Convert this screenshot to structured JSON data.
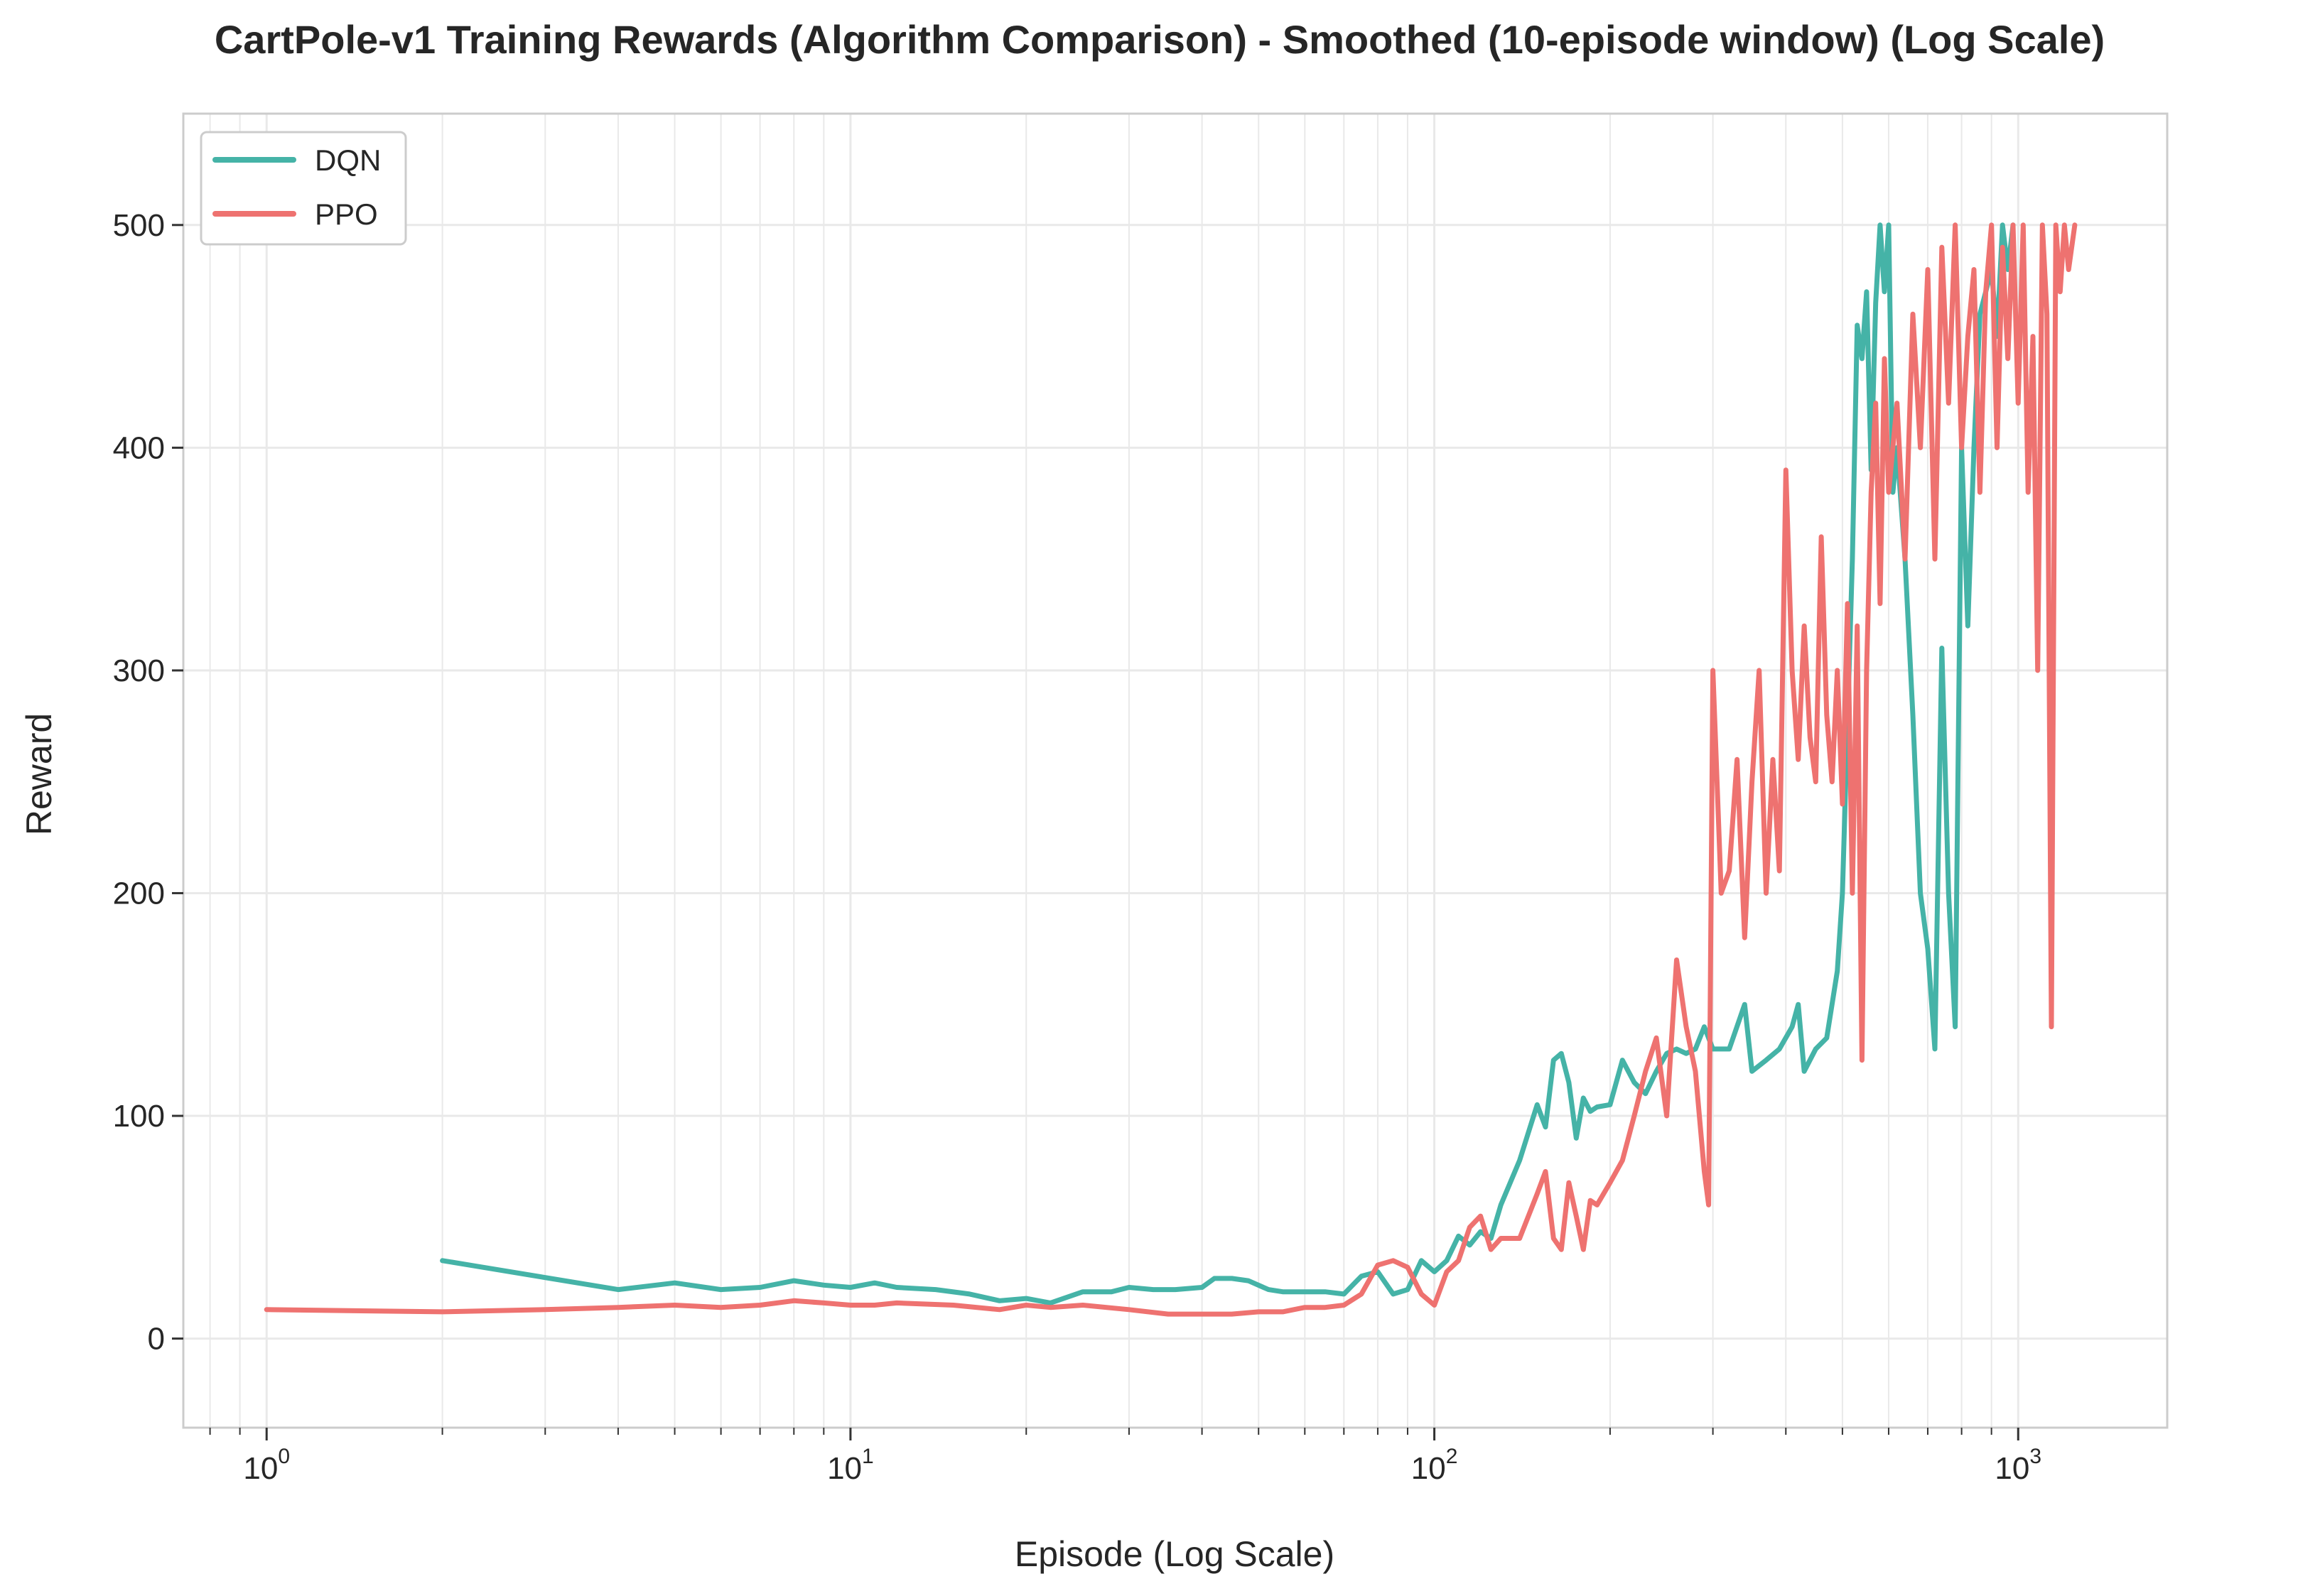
{
  "chart_data": {
    "type": "line",
    "title": "CartPole-v1 Training Rewards (Algorithm Comparison) - Smoothed (10-episode window) (Log Scale)",
    "xlabel": "Episode (Log Scale)",
    "ylabel": "Reward",
    "x_scale": "log",
    "xlim": [
      0.72,
      1800
    ],
    "ylim": [
      -40,
      550
    ],
    "x_ticks": [
      {
        "base": "10",
        "exp": "0",
        "value": 1
      },
      {
        "base": "10",
        "exp": "1",
        "value": 10
      },
      {
        "base": "10",
        "exp": "2",
        "value": 100
      },
      {
        "base": "10",
        "exp": "3",
        "value": 1000
      }
    ],
    "y_ticks": [
      0,
      100,
      200,
      300,
      400,
      500
    ],
    "grid": true,
    "legend_position": "top-left",
    "series": [
      {
        "name": "DQN",
        "color": "#45B3A7",
        "points": [
          [
            2,
            35
          ],
          [
            4,
            22
          ],
          [
            5,
            25
          ],
          [
            6,
            22
          ],
          [
            7,
            23
          ],
          [
            8,
            26
          ],
          [
            9,
            24
          ],
          [
            10,
            23
          ],
          [
            11,
            25
          ],
          [
            12,
            23
          ],
          [
            14,
            22
          ],
          [
            16,
            20
          ],
          [
            18,
            17
          ],
          [
            20,
            18
          ],
          [
            22,
            16
          ],
          [
            25,
            21
          ],
          [
            28,
            21
          ],
          [
            30,
            23
          ],
          [
            33,
            22
          ],
          [
            36,
            22
          ],
          [
            40,
            23
          ],
          [
            42,
            27
          ],
          [
            45,
            27
          ],
          [
            48,
            26
          ],
          [
            52,
            22
          ],
          [
            55,
            21
          ],
          [
            60,
            21
          ],
          [
            65,
            21
          ],
          [
            70,
            20
          ],
          [
            75,
            28
          ],
          [
            80,
            30
          ],
          [
            85,
            20
          ],
          [
            90,
            22
          ],
          [
            95,
            35
          ],
          [
            100,
            30
          ],
          [
            105,
            35
          ],
          [
            110,
            46
          ],
          [
            115,
            42
          ],
          [
            120,
            48
          ],
          [
            125,
            45
          ],
          [
            130,
            60
          ],
          [
            140,
            80
          ],
          [
            150,
            105
          ],
          [
            155,
            95
          ],
          [
            160,
            125
          ],
          [
            165,
            128
          ],
          [
            170,
            115
          ],
          [
            175,
            90
          ],
          [
            180,
            108
          ],
          [
            185,
            102
          ],
          [
            190,
            104
          ],
          [
            200,
            105
          ],
          [
            210,
            125
          ],
          [
            220,
            115
          ],
          [
            230,
            110
          ],
          [
            240,
            120
          ],
          [
            250,
            128
          ],
          [
            260,
            130
          ],
          [
            270,
            128
          ],
          [
            280,
            130
          ],
          [
            290,
            140
          ],
          [
            300,
            130
          ],
          [
            320,
            130
          ],
          [
            340,
            150
          ],
          [
            350,
            120
          ],
          [
            370,
            125
          ],
          [
            390,
            130
          ],
          [
            410,
            140
          ],
          [
            420,
            150
          ],
          [
            430,
            120
          ],
          [
            450,
            130
          ],
          [
            470,
            135
          ],
          [
            490,
            165
          ],
          [
            500,
            200
          ],
          [
            520,
            350
          ],
          [
            530,
            455
          ],
          [
            540,
            440
          ],
          [
            550,
            470
          ],
          [
            560,
            390
          ],
          [
            570,
            465
          ],
          [
            580,
            500
          ],
          [
            590,
            470
          ],
          [
            600,
            500
          ],
          [
            610,
            380
          ],
          [
            620,
            400
          ],
          [
            640,
            350
          ],
          [
            660,
            280
          ],
          [
            680,
            200
          ],
          [
            700,
            175
          ],
          [
            720,
            130
          ],
          [
            740,
            310
          ],
          [
            760,
            200
          ],
          [
            780,
            140
          ],
          [
            800,
            400
          ],
          [
            820,
            320
          ],
          [
            840,
            400
          ],
          [
            860,
            460
          ],
          [
            880,
            470
          ],
          [
            900,
            480
          ],
          [
            920,
            450
          ],
          [
            940,
            500
          ],
          [
            960,
            480
          ],
          [
            980,
            500
          ]
        ]
      },
      {
        "name": "PPO",
        "color": "#EE7270",
        "points": [
          [
            1,
            13
          ],
          [
            2,
            12
          ],
          [
            3,
            13
          ],
          [
            4,
            14
          ],
          [
            5,
            15
          ],
          [
            6,
            14
          ],
          [
            7,
            15
          ],
          [
            8,
            17
          ],
          [
            9,
            16
          ],
          [
            10,
            15
          ],
          [
            11,
            15
          ],
          [
            12,
            16
          ],
          [
            15,
            15
          ],
          [
            18,
            13
          ],
          [
            20,
            15
          ],
          [
            22,
            14
          ],
          [
            25,
            15
          ],
          [
            30,
            13
          ],
          [
            35,
            11
          ],
          [
            40,
            11
          ],
          [
            45,
            11
          ],
          [
            50,
            12
          ],
          [
            55,
            12
          ],
          [
            60,
            14
          ],
          [
            65,
            14
          ],
          [
            70,
            15
          ],
          [
            75,
            20
          ],
          [
            80,
            33
          ],
          [
            85,
            35
          ],
          [
            90,
            32
          ],
          [
            95,
            20
          ],
          [
            100,
            15
          ],
          [
            105,
            30
          ],
          [
            110,
            35
          ],
          [
            115,
            50
          ],
          [
            120,
            55
          ],
          [
            125,
            40
          ],
          [
            130,
            45
          ],
          [
            140,
            45
          ],
          [
            150,
            65
          ],
          [
            155,
            75
          ],
          [
            160,
            45
          ],
          [
            165,
            40
          ],
          [
            170,
            70
          ],
          [
            175,
            55
          ],
          [
            180,
            40
          ],
          [
            185,
            62
          ],
          [
            190,
            60
          ],
          [
            200,
            70
          ],
          [
            210,
            80
          ],
          [
            220,
            100
          ],
          [
            230,
            120
          ],
          [
            240,
            135
          ],
          [
            250,
            100
          ],
          [
            260,
            170
          ],
          [
            270,
            140
          ],
          [
            280,
            120
          ],
          [
            290,
            75
          ],
          [
            295,
            60
          ],
          [
            300,
            300
          ],
          [
            310,
            200
          ],
          [
            320,
            210
          ],
          [
            330,
            260
          ],
          [
            340,
            180
          ],
          [
            350,
            250
          ],
          [
            360,
            300
          ],
          [
            370,
            200
          ],
          [
            380,
            260
          ],
          [
            390,
            210
          ],
          [
            400,
            390
          ],
          [
            410,
            300
          ],
          [
            420,
            260
          ],
          [
            430,
            320
          ],
          [
            440,
            270
          ],
          [
            450,
            250
          ],
          [
            460,
            360
          ],
          [
            470,
            280
          ],
          [
            480,
            250
          ],
          [
            490,
            300
          ],
          [
            500,
            240
          ],
          [
            510,
            330
          ],
          [
            520,
            200
          ],
          [
            530,
            320
          ],
          [
            540,
            125
          ],
          [
            550,
            300
          ],
          [
            560,
            380
          ],
          [
            570,
            420
          ],
          [
            580,
            330
          ],
          [
            590,
            440
          ],
          [
            600,
            380
          ],
          [
            620,
            420
          ],
          [
            640,
            350
          ],
          [
            660,
            460
          ],
          [
            680,
            400
          ],
          [
            700,
            480
          ],
          [
            720,
            350
          ],
          [
            740,
            490
          ],
          [
            760,
            420
          ],
          [
            780,
            500
          ],
          [
            800,
            400
          ],
          [
            820,
            450
          ],
          [
            840,
            480
          ],
          [
            860,
            380
          ],
          [
            880,
            470
          ],
          [
            900,
            500
          ],
          [
            920,
            400
          ],
          [
            940,
            490
          ],
          [
            960,
            440
          ],
          [
            980,
            500
          ],
          [
            1000,
            420
          ],
          [
            1020,
            500
          ],
          [
            1040,
            380
          ],
          [
            1060,
            450
          ],
          [
            1080,
            300
          ],
          [
            1100,
            500
          ],
          [
            1120,
            460
          ],
          [
            1140,
            140
          ],
          [
            1160,
            500
          ],
          [
            1180,
            470
          ],
          [
            1200,
            500
          ],
          [
            1220,
            480
          ],
          [
            1250,
            500
          ]
        ]
      }
    ]
  }
}
